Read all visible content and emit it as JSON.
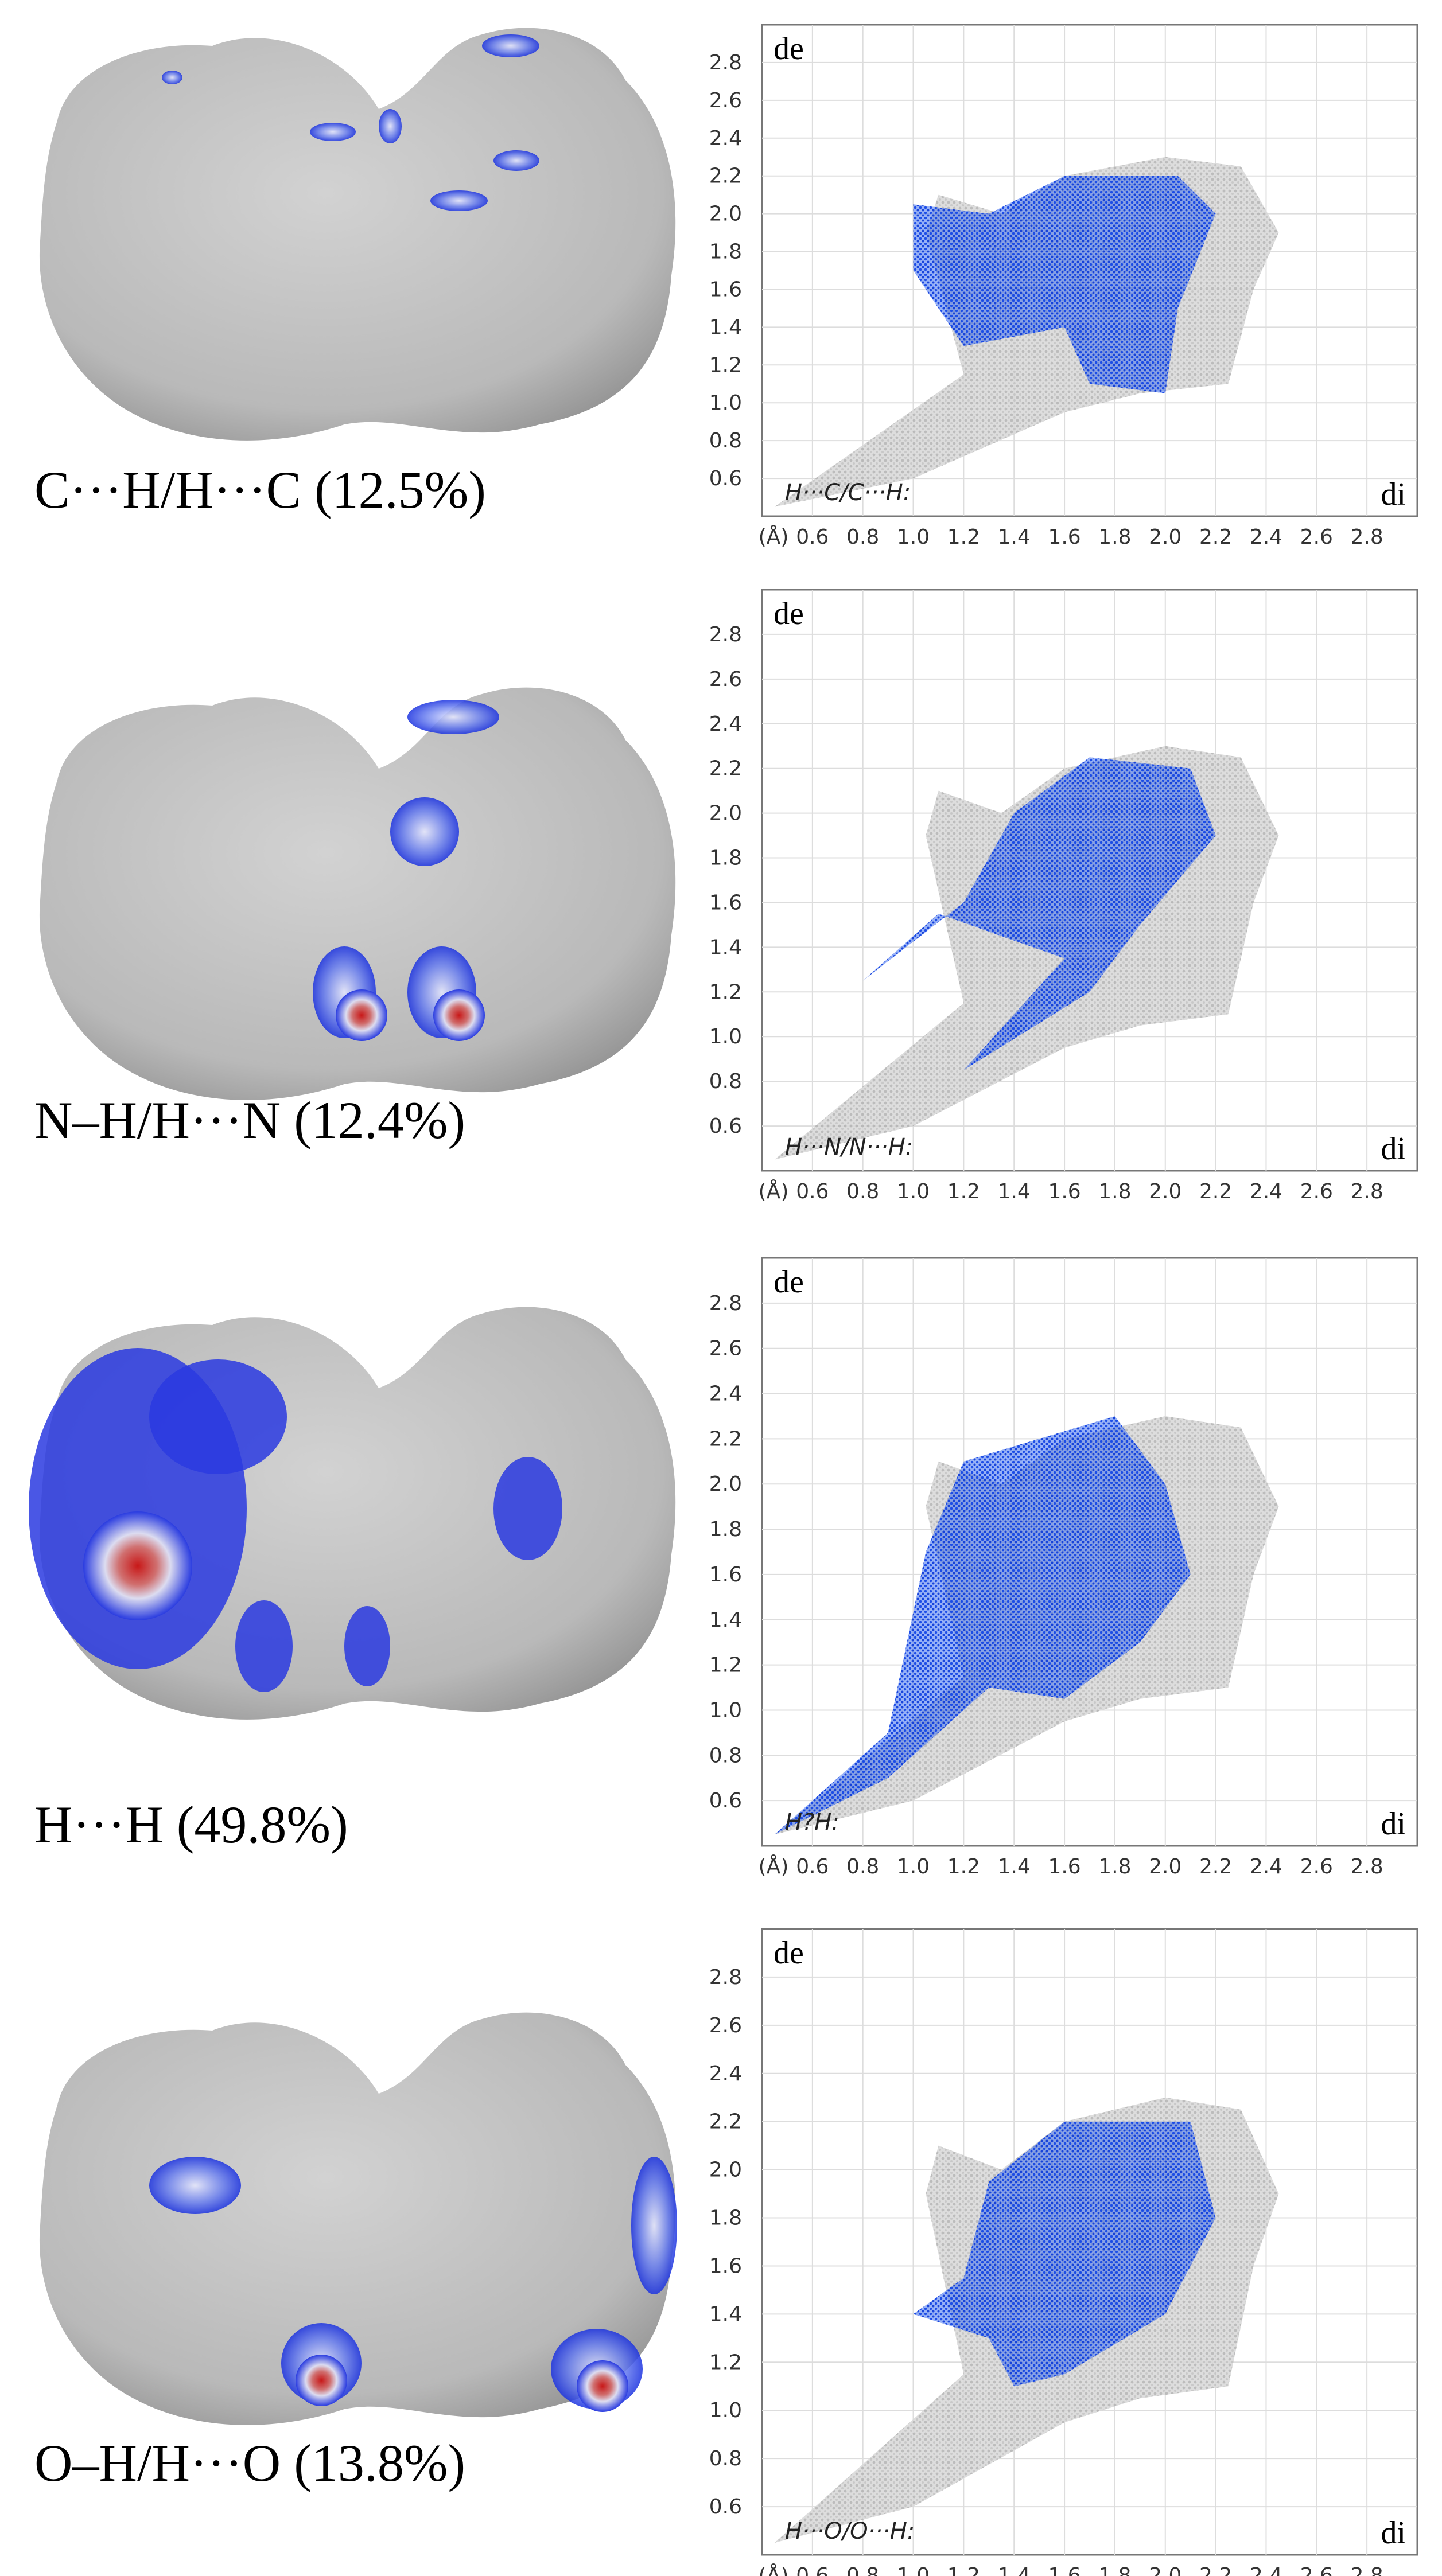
{
  "panels": [
    {
      "caption": "C···H/H···C (12.5%)",
      "inset_label": "H···C/C···H:"
    },
    {
      "caption": "N–H/H···N (12.4%)",
      "inset_label": "H···N/N···H:"
    },
    {
      "caption": "H···H (49.8%)",
      "inset_label": "H?H:"
    },
    {
      "caption": "O–H/H···O (13.8%)",
      "inset_label": "H···O/O···H:"
    }
  ],
  "plot_axes": {
    "y_label": "de",
    "x_label": "di",
    "unit_label": "(Å)",
    "lim": [
      0.4,
      3.0
    ],
    "ticks": [
      0.6,
      0.8,
      {
        "value": 1,
        "label": "1.0"
      },
      1.2,
      1.4,
      1.6,
      1.8,
      {
        "value": 2,
        "label": "2.0"
      },
      2.2,
      2.4,
      2.6,
      2.8
    ]
  }
}
